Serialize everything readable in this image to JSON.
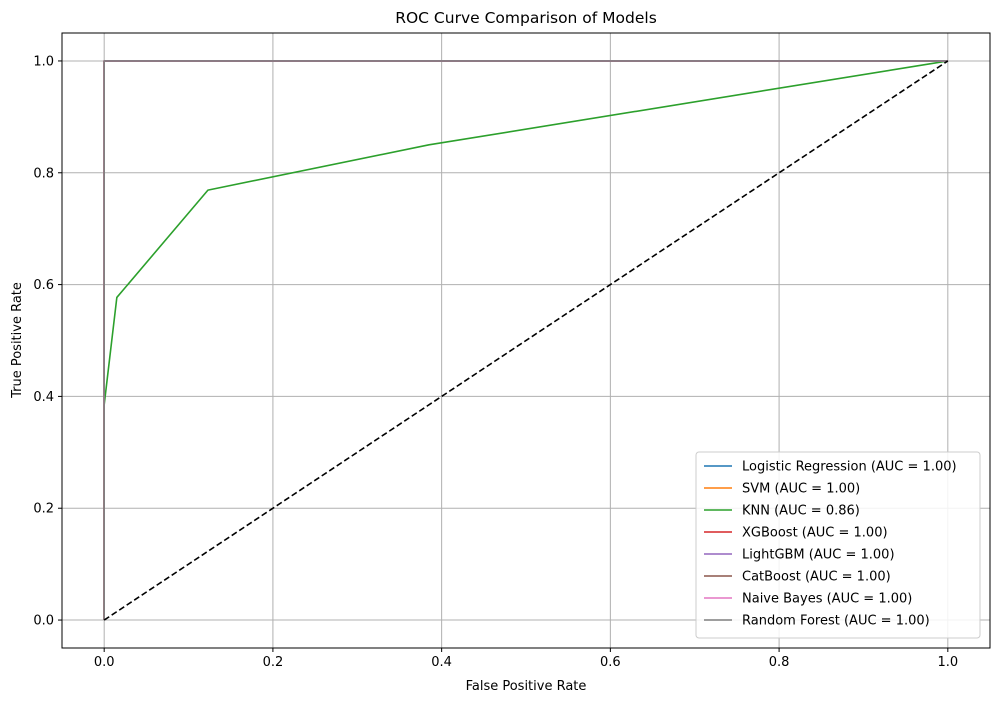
{
  "chart_data": {
    "type": "line",
    "title": "ROC Curve Comparison of Models",
    "xlabel": "False Positive Rate",
    "ylabel": "True Positive Rate",
    "xlim": [
      -0.05,
      1.05
    ],
    "ylim": [
      -0.05,
      1.05
    ],
    "xticks": [
      "0.0",
      "0.2",
      "0.4",
      "0.6",
      "0.8",
      "1.0"
    ],
    "yticks": [
      "0.0",
      "0.2",
      "0.4",
      "0.6",
      "0.8",
      "1.0"
    ],
    "grid": true,
    "legend_position": "lower-right",
    "series": [
      {
        "name": "Logistic Regression (AUC = 1.00)",
        "color": "#1f77b4",
        "x": [
          0,
          0,
          1
        ],
        "y": [
          0,
          1,
          1
        ]
      },
      {
        "name": "SVM (AUC = 1.00)",
        "color": "#ff7f0e",
        "x": [
          0,
          0,
          1
        ],
        "y": [
          0,
          1,
          1
        ]
      },
      {
        "name": "KNN (AUC = 0.86)",
        "color": "#2ca02c",
        "x": [
          0,
          0,
          0.015,
          0.123,
          0.385,
          1.0
        ],
        "y": [
          0,
          0.385,
          0.577,
          0.769,
          0.85,
          1.0
        ]
      },
      {
        "name": "XGBoost (AUC = 1.00)",
        "color": "#d62728",
        "x": [
          0,
          0,
          1
        ],
        "y": [
          0,
          1,
          1
        ]
      },
      {
        "name": "LightGBM (AUC = 1.00)",
        "color": "#9467bd",
        "x": [
          0,
          0,
          1
        ],
        "y": [
          0,
          1,
          1
        ]
      },
      {
        "name": "CatBoost (AUC = 1.00)",
        "color": "#8c564b",
        "x": [
          0,
          0,
          1
        ],
        "y": [
          0,
          1,
          1
        ]
      },
      {
        "name": "Naive Bayes (AUC = 1.00)",
        "color": "#e377c2",
        "x": [
          0,
          0,
          1
        ],
        "y": [
          0,
          1,
          1
        ]
      },
      {
        "name": "Random Forest (AUC = 1.00)",
        "color": "#7f7f7f",
        "x": [
          0,
          0,
          1
        ],
        "y": [
          0,
          1,
          1
        ]
      }
    ],
    "reference_line": {
      "x": [
        0,
        1
      ],
      "y": [
        0,
        1
      ],
      "color": "#000000",
      "style": "dashed"
    }
  }
}
